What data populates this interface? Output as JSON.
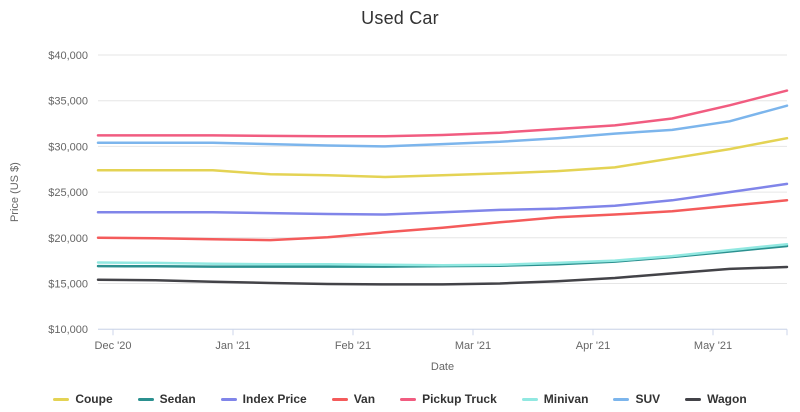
{
  "chart_data": {
    "type": "line",
    "title": "Used Car",
    "xlabel": "Date",
    "ylabel": "Price (US $)",
    "legend_position": "bottom",
    "grid": "horizontal",
    "ylim": [
      10000,
      40000
    ],
    "y_tick_values": [
      10000,
      15000,
      20000,
      25000,
      30000,
      35000,
      40000
    ],
    "y_tick_labels": [
      "$10,000",
      "$15,000",
      "$20,000",
      "$25,000",
      "$30,000",
      "$35,000",
      "$40,000"
    ],
    "x_tick_labels": [
      "Dec '20",
      "Jan '21",
      "Feb '21",
      "Mar '21",
      "Apr '21",
      "May '21"
    ],
    "x_approx_dates": [
      "Nov 27",
      "Dec 11",
      "Dec 26",
      "Jan 9",
      "Jan 24",
      "Feb 7",
      "Feb 22",
      "Mar 8",
      "Mar 23",
      "Apr 6",
      "Apr 21",
      "May 5",
      "May 19"
    ],
    "series": [
      {
        "name": "Coupe",
        "slug": "coupe",
        "color": "#e4d354",
        "values": [
          27400,
          27400,
          27400,
          26950,
          26850,
          26650,
          26850,
          27050,
          27300,
          27700,
          28700,
          29700,
          30900
        ]
      },
      {
        "name": "Sedan",
        "slug": "sedan",
        "color": "#2b908f",
        "values": [
          16900,
          16880,
          16850,
          16850,
          16850,
          16850,
          16900,
          16950,
          17100,
          17400,
          17900,
          18500,
          19100
        ]
      },
      {
        "name": "Index Price",
        "slug": "index-price",
        "color": "#8085e9",
        "values": [
          22800,
          22800,
          22800,
          22700,
          22600,
          22550,
          22800,
          23050,
          23200,
          23500,
          24100,
          25000,
          25900
        ]
      },
      {
        "name": "Van",
        "slug": "van",
        "color": "#f45b5b",
        "values": [
          20000,
          19950,
          19850,
          19750,
          20050,
          20600,
          21100,
          21700,
          22250,
          22550,
          22900,
          23500,
          24100
        ]
      },
      {
        "name": "Pickup Truck",
        "slug": "pickup-truck",
        "color": "#f15c80",
        "values": [
          31200,
          31200,
          31200,
          31150,
          31100,
          31100,
          31250,
          31500,
          31900,
          32300,
          33050,
          34500,
          36100
        ]
      },
      {
        "name": "Minivan",
        "slug": "minivan",
        "color": "#91e8e1",
        "values": [
          17300,
          17250,
          17150,
          17100,
          17100,
          17050,
          17000,
          17050,
          17250,
          17500,
          18000,
          18650,
          19300
        ]
      },
      {
        "name": "SUV",
        "slug": "suv",
        "color": "#7cb5ec",
        "values": [
          30400,
          30400,
          30400,
          30250,
          30100,
          30000,
          30250,
          30500,
          30900,
          31400,
          31800,
          32750,
          34450
        ]
      },
      {
        "name": "Wagon",
        "slug": "wagon",
        "color": "#434348",
        "values": [
          15400,
          15350,
          15200,
          15050,
          14950,
          14900,
          14900,
          15000,
          15250,
          15600,
          16100,
          16600,
          16800
        ]
      }
    ],
    "colors": {
      "grid": "#e6e6e6",
      "axis": "#ccd6eb",
      "tick_text": "#666666",
      "title_text": "#333333",
      "legend_text": "#333333"
    }
  }
}
